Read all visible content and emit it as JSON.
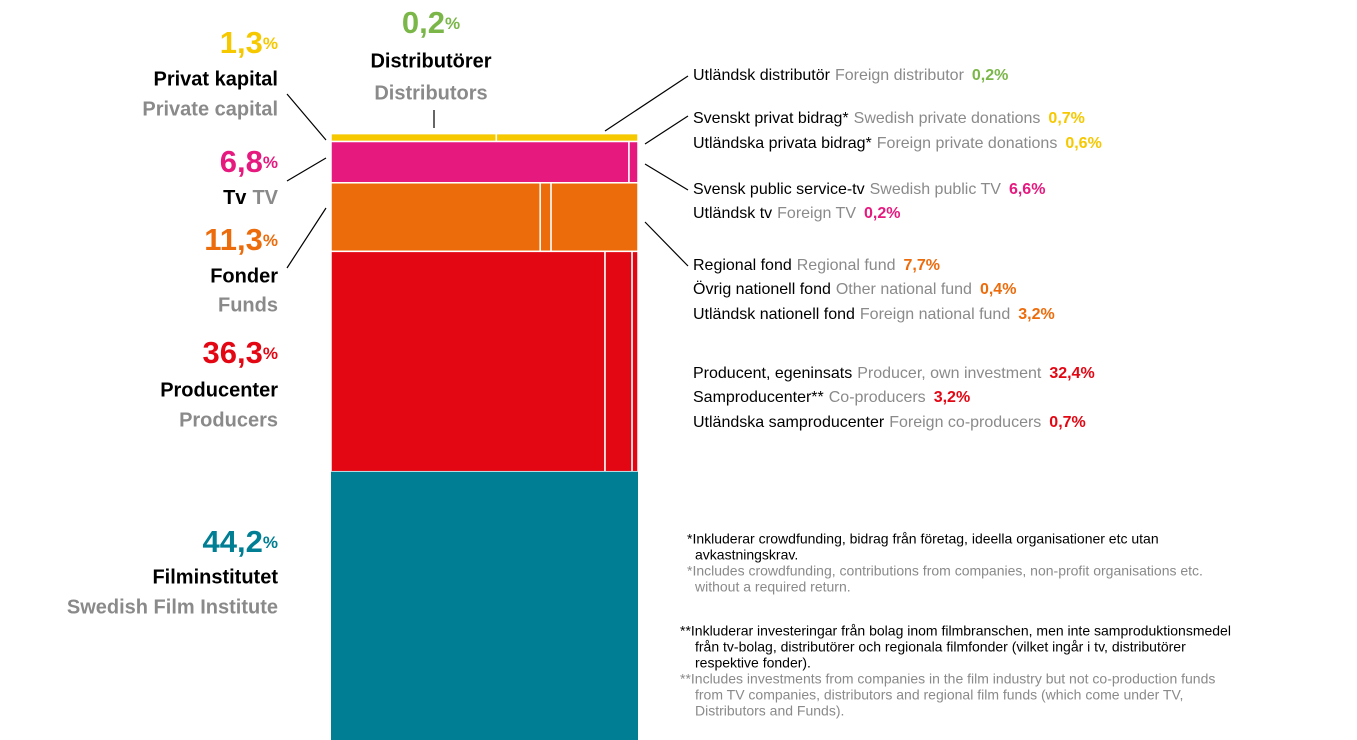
{
  "chart_data": {
    "type": "mosaic",
    "unit": "%",
    "groups": [
      {
        "name": "Distributörer",
        "name_en": "Distributors",
        "value": 0.2,
        "value_label": "0,2",
        "color": "#7ab648",
        "items": [
          {
            "name": "Utländsk distributör",
            "name_en": "Foreign distributor",
            "value": 0.2,
            "value_label": "0,2"
          }
        ]
      },
      {
        "name": "Privat kapital",
        "name_en": "Private capital",
        "value": 1.3,
        "value_label": "1,3",
        "color": "#f5c800",
        "items": [
          {
            "name": "Svenskt privat bidrag*",
            "name_en": "Swedish private donations",
            "value": 0.7,
            "value_label": "0,7"
          },
          {
            "name": "Utländska privata bidrag*",
            "name_en": "Foreign private donations",
            "value": 0.6,
            "value_label": "0,6"
          }
        ]
      },
      {
        "name": "Tv",
        "name_en": "TV",
        "value": 6.8,
        "value_label": "6,8",
        "color": "#e6197f",
        "items": [
          {
            "name": "Svensk public service-tv",
            "name_en": "Swedish public TV",
            "value": 6.6,
            "value_label": "6,6"
          },
          {
            "name": "Utländsk tv",
            "name_en": "Foreign TV",
            "value": 0.2,
            "value_label": "0,2"
          }
        ]
      },
      {
        "name": "Fonder",
        "name_en": "Funds",
        "value": 11.3,
        "value_label": "11,3",
        "color": "#ec6c0c",
        "items": [
          {
            "name": "Regional fond",
            "name_en": "Regional fund",
            "value": 7.7,
            "value_label": "7,7"
          },
          {
            "name": "Övrig nationell fond",
            "name_en": "Other national fund",
            "value": 0.4,
            "value_label": "0,4"
          },
          {
            "name": "Utländsk nationell fond",
            "name_en": "Foreign national fund",
            "value": 3.2,
            "value_label": "3,2"
          }
        ]
      },
      {
        "name": "Producenter",
        "name_en": "Producers",
        "value": 36.3,
        "value_label": "36,3",
        "color": "#e30613",
        "items": [
          {
            "name": "Producent, egeninsats",
            "name_en": "Producer, own investment",
            "value": 32.4,
            "value_label": "32,4"
          },
          {
            "name": "Samproducenter**",
            "name_en": "Co-producers",
            "value": 3.2,
            "value_label": "3,2"
          },
          {
            "name": "Utländska samproducenter",
            "name_en": "Foreign co-producers",
            "value": 0.7,
            "value_label": "0,7"
          }
        ]
      },
      {
        "name": "Filminstitutet",
        "name_en": "Swedish Film Institute",
        "value": 44.2,
        "value_label": "44,2",
        "color": "#007e93",
        "items": []
      }
    ],
    "footnotes": [
      {
        "sv": [
          "*Inkluderar crowdfunding, bidrag från företag, ideella organisationer etc utan",
          "avkastningskrav."
        ],
        "en": [
          "*Includes crowdfunding, contributions from companies, non-profit organisations etc.",
          "without a required return."
        ]
      },
      {
        "sv": [
          "**Inkluderar investeringar från bolag inom filmbranschen, men inte samproduktionsmedel",
          "från tv-bolag, distributörer och regionala filmfonder (vilket ingår i tv, distributörer",
          "respektive fonder)."
        ],
        "en": [
          "**Includes investments from companies in the film industry but not co-production funds",
          "from TV companies, distributors and regional film funds (which come under TV,",
          "Distributors and Funds)."
        ]
      }
    ]
  }
}
